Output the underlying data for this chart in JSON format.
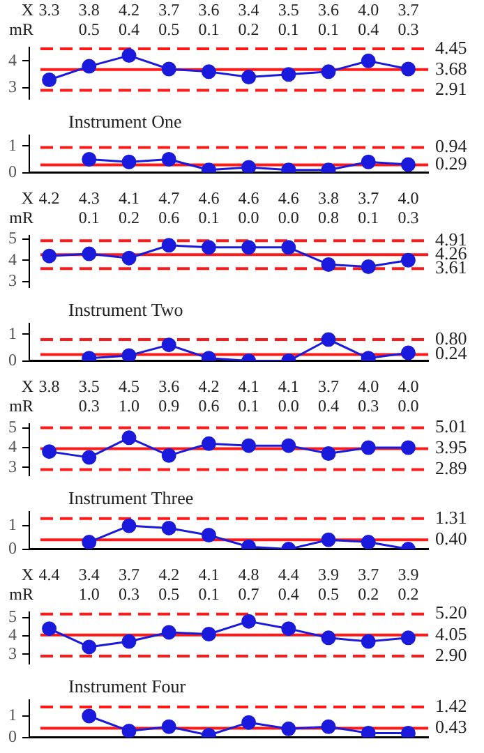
{
  "chart_data": [
    {
      "type": "line",
      "annotations": [
        "X"
      ],
      "categories": [
        null,
        null,
        null,
        null,
        null,
        null,
        null,
        null,
        null,
        null
      ],
      "marker": "circle",
      "ylim": [
        2.6,
        4.5
      ],
      "yticks": [
        3,
        4
      ],
      "series": [
        {
          "color": "#1a1adc",
          "values": [
            3.3,
            3.8,
            4.2,
            3.7,
            3.6,
            3.4,
            3.5,
            3.6,
            4.0,
            3.7
          ],
          "value_labels": [
            "3.3",
            "3.8",
            "4.2",
            "3.7",
            "3.6",
            "3.4",
            "3.5",
            "3.6",
            "4.0",
            "3.7"
          ]
        }
      ],
      "ref_lines": [
        {
          "axis": "y",
          "value": 4.45,
          "label": "4.45",
          "color": "#ff1a1a",
          "line_style": "dashed"
        },
        {
          "axis": "y",
          "value": 3.68,
          "label": "3.68",
          "color": "#ff1a1a",
          "line_style": "solid"
        },
        {
          "axis": "y",
          "value": 2.91,
          "label": "2.91",
          "color": "#ff1a1a",
          "line_style": "dashed"
        }
      ]
    },
    {
      "type": "line",
      "title": "Instrument One",
      "annotations": [
        "mR"
      ],
      "categories": [
        null,
        null,
        null,
        null,
        null,
        null,
        null,
        null,
        null,
        null
      ],
      "marker": "circle",
      "ylim": [
        0,
        1.4
      ],
      "yticks": [
        0,
        1
      ],
      "series": [
        {
          "color": "#1a1adc",
          "values": [
            null,
            0.5,
            0.4,
            0.5,
            0.1,
            0.2,
            0.1,
            0.1,
            0.4,
            0.3
          ],
          "value_labels": [
            null,
            "0.5",
            "0.4",
            "0.5",
            "0.1",
            "0.2",
            "0.1",
            "0.1",
            "0.4",
            "0.3"
          ]
        }
      ],
      "ref_lines": [
        {
          "axis": "y",
          "value": 0.94,
          "label": "0.94",
          "color": "#ff1a1a",
          "line_style": "dashed"
        },
        {
          "axis": "y",
          "value": 0.29,
          "label": "0.29",
          "color": "#ff1a1a",
          "line_style": "solid"
        }
      ]
    },
    {
      "type": "line",
      "annotations": [
        "X"
      ],
      "categories": [
        null,
        null,
        null,
        null,
        null,
        null,
        null,
        null,
        null,
        null
      ],
      "marker": "circle",
      "ylim": [
        2.75,
        5.15
      ],
      "yticks": [
        3,
        4,
        5
      ],
      "series": [
        {
          "color": "#1a1adc",
          "values": [
            4.2,
            4.3,
            4.1,
            4.7,
            4.6,
            4.6,
            4.6,
            3.8,
            3.7,
            4.0
          ],
          "value_labels": [
            "4.2",
            "4.3",
            "4.1",
            "4.7",
            "4.6",
            "4.6",
            "4.6",
            "3.8",
            "3.7",
            "4.0"
          ]
        }
      ],
      "ref_lines": [
        {
          "axis": "y",
          "value": 4.91,
          "label": "4.91",
          "color": "#ff1a1a",
          "line_style": "dashed"
        },
        {
          "axis": "y",
          "value": 4.26,
          "label": "4.26",
          "color": "#ff1a1a",
          "line_style": "solid"
        },
        {
          "axis": "y",
          "value": 3.61,
          "label": "3.61",
          "color": "#ff1a1a",
          "line_style": "dashed"
        }
      ]
    },
    {
      "type": "line",
      "title": "Instrument Two",
      "annotations": [
        "mR"
      ],
      "categories": [
        null,
        null,
        null,
        null,
        null,
        null,
        null,
        null,
        null,
        null
      ],
      "marker": "circle",
      "ylim": [
        0,
        1.4
      ],
      "yticks": [
        0,
        1
      ],
      "series": [
        {
          "color": "#1a1adc",
          "values": [
            null,
            0.1,
            0.2,
            0.6,
            0.1,
            0.0,
            0.0,
            0.8,
            0.1,
            0.3
          ],
          "value_labels": [
            null,
            "0.1",
            "0.2",
            "0.6",
            "0.1",
            "0.0",
            "0.0",
            "0.8",
            "0.1",
            "0.3"
          ]
        }
      ],
      "ref_lines": [
        {
          "axis": "y",
          "value": 0.8,
          "label": "0.80",
          "color": "#ff1a1a",
          "line_style": "dashed"
        },
        {
          "axis": "y",
          "value": 0.24,
          "label": "0.24",
          "color": "#ff1a1a",
          "line_style": "solid"
        }
      ]
    },
    {
      "type": "line",
      "annotations": [
        "X"
      ],
      "categories": [
        null,
        null,
        null,
        null,
        null,
        null,
        null,
        null,
        null,
        null
      ],
      "marker": "circle",
      "ylim": [
        2.6,
        5.2
      ],
      "yticks": [
        3,
        4,
        5
      ],
      "series": [
        {
          "color": "#1a1adc",
          "values": [
            3.8,
            3.5,
            4.5,
            3.6,
            4.2,
            4.1,
            4.1,
            3.7,
            4.0,
            4.0
          ],
          "value_labels": [
            "3.8",
            "3.5",
            "4.5",
            "3.6",
            "4.2",
            "4.1",
            "4.1",
            "3.7",
            "4.0",
            "4.0"
          ]
        }
      ],
      "ref_lines": [
        {
          "axis": "y",
          "value": 5.01,
          "label": "5.01",
          "color": "#ff1a1a",
          "line_style": "dashed"
        },
        {
          "axis": "y",
          "value": 3.95,
          "label": "3.95",
          "color": "#ff1a1a",
          "line_style": "solid"
        },
        {
          "axis": "y",
          "value": 2.89,
          "label": "2.89",
          "color": "#ff1a1a",
          "line_style": "dashed"
        }
      ]
    },
    {
      "type": "line",
      "title": "Instrument Three",
      "annotations": [
        "mR"
      ],
      "categories": [
        null,
        null,
        null,
        null,
        null,
        null,
        null,
        null,
        null,
        null
      ],
      "marker": "circle",
      "ylim": [
        0,
        1.6
      ],
      "yticks": [
        0,
        1
      ],
      "series": [
        {
          "color": "#1a1adc",
          "values": [
            null,
            0.3,
            1.0,
            0.9,
            0.6,
            0.1,
            0.0,
            0.4,
            0.3,
            0.0
          ],
          "value_labels": [
            null,
            "0.3",
            "1.0",
            "0.9",
            "0.6",
            "0.1",
            "0.0",
            "0.4",
            "0.3",
            "0.0"
          ]
        }
      ],
      "ref_lines": [
        {
          "axis": "y",
          "value": 1.31,
          "label": "1.31",
          "color": "#ff1a1a",
          "line_style": "dashed"
        },
        {
          "axis": "y",
          "value": 0.4,
          "label": "0.40",
          "color": "#ff1a1a",
          "line_style": "solid"
        }
      ]
    },
    {
      "type": "line",
      "annotations": [
        "X"
      ],
      "categories": [
        null,
        null,
        null,
        null,
        null,
        null,
        null,
        null,
        null,
        null
      ],
      "marker": "circle",
      "ylim": [
        2.5,
        5.3
      ],
      "yticks": [
        3,
        4,
        5
      ],
      "series": [
        {
          "color": "#1a1adc",
          "values": [
            4.4,
            3.4,
            3.7,
            4.2,
            4.1,
            4.8,
            4.4,
            3.9,
            3.7,
            3.9
          ],
          "value_labels": [
            "4.4",
            "3.4",
            "3.7",
            "4.2",
            "4.1",
            "4.8",
            "4.4",
            "3.9",
            "3.7",
            "3.9"
          ]
        }
      ],
      "ref_lines": [
        {
          "axis": "y",
          "value": 5.2,
          "label": "5.20",
          "color": "#ff1a1a",
          "line_style": "dashed"
        },
        {
          "axis": "y",
          "value": 4.05,
          "label": "4.05",
          "color": "#ff1a1a",
          "line_style": "solid"
        },
        {
          "axis": "y",
          "value": 2.9,
          "label": "2.90",
          "color": "#ff1a1a",
          "line_style": "dashed"
        }
      ]
    },
    {
      "type": "line",
      "title": "Instrument Four",
      "annotations": [
        "mR"
      ],
      "categories": [
        null,
        null,
        null,
        null,
        null,
        null,
        null,
        null,
        null,
        null
      ],
      "marker": "circle",
      "ylim": [
        0,
        1.75
      ],
      "yticks": [
        0,
        1
      ],
      "series": [
        {
          "color": "#1a1adc",
          "values": [
            null,
            1.0,
            0.3,
            0.5,
            0.1,
            0.7,
            0.4,
            0.5,
            0.2,
            0.2
          ],
          "value_labels": [
            null,
            "1.0",
            "0.3",
            "0.5",
            "0.1",
            "0.7",
            "0.4",
            "0.5",
            "0.2",
            "0.2"
          ]
        }
      ],
      "ref_lines": [
        {
          "axis": "y",
          "value": 1.42,
          "label": "1.42",
          "color": "#ff1a1a",
          "line_style": "dashed"
        },
        {
          "axis": "y",
          "value": 0.43,
          "label": "0.43",
          "color": "#ff1a1a",
          "line_style": "solid"
        }
      ]
    }
  ]
}
